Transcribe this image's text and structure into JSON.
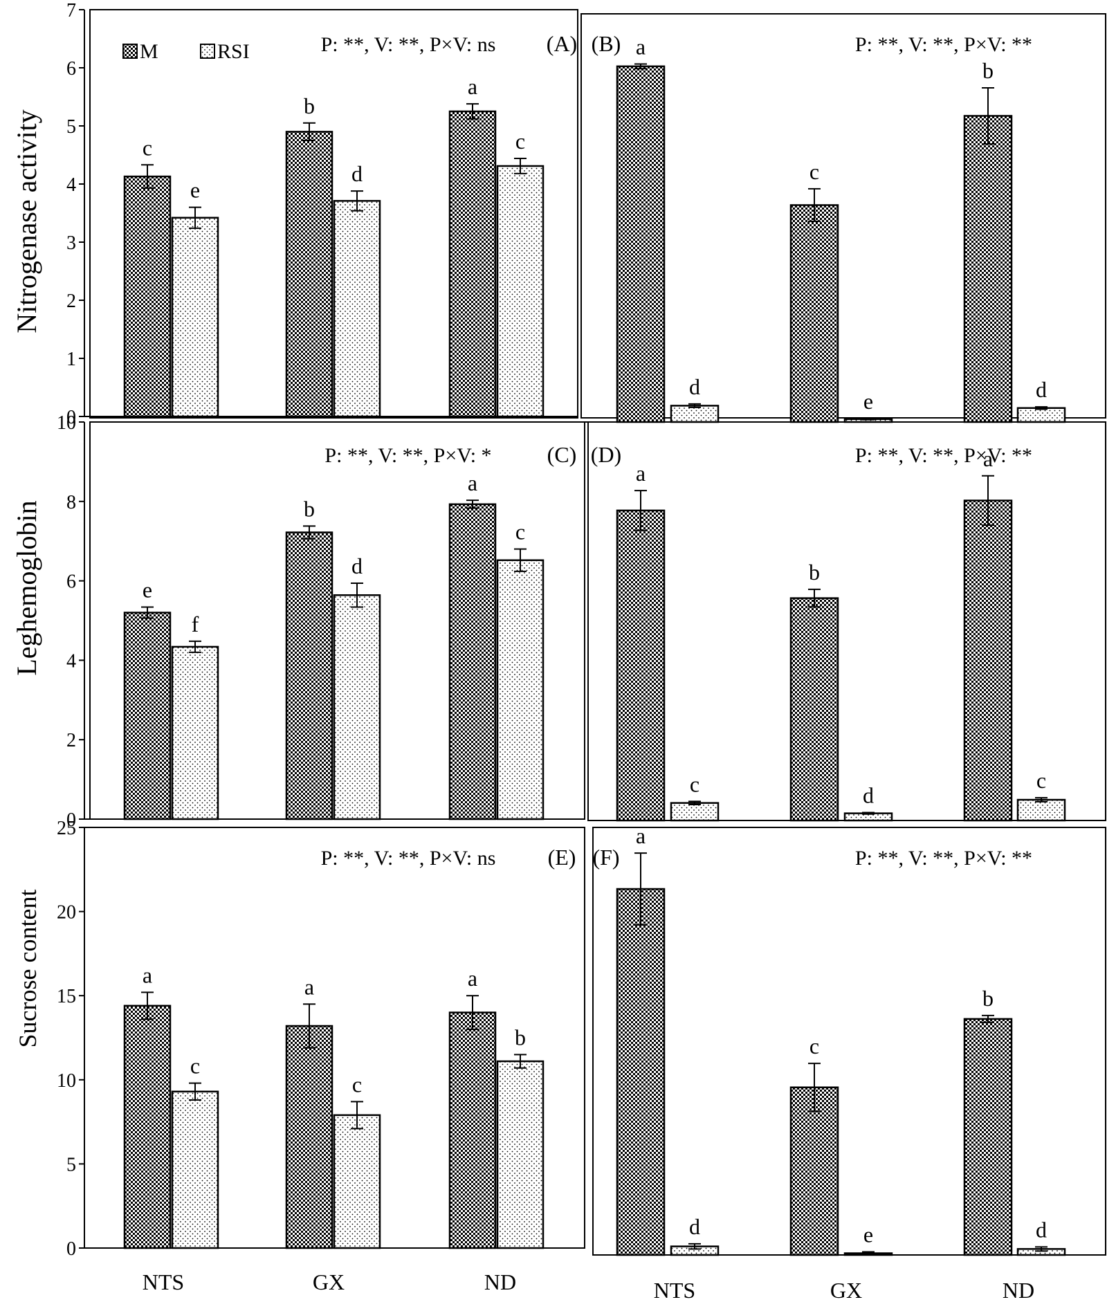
{
  "legend": {
    "items": [
      {
        "label": "M",
        "pattern": "checker"
      },
      {
        "label": "RSI",
        "pattern": "dots"
      }
    ]
  },
  "y_axis_titles": [
    "Nitrogenase  activity",
    "Leghemoglobin",
    "Sucrose content"
  ],
  "x_categories": [
    "NTS",
    "GX",
    "ND"
  ],
  "colors": {
    "bar_outline": "#000000",
    "background": "#ffffff"
  },
  "chart_data": [
    {
      "type": "bar",
      "panel": "(A)",
      "stats": "P: **, V: **, P×V: ns",
      "categories": [
        "NTS",
        "GX",
        "ND"
      ],
      "ylim": [
        0,
        7
      ],
      "ticks": [
        0,
        1,
        2,
        3,
        4,
        5,
        6,
        7
      ],
      "ylabel": "Nitrogenase  activity",
      "series": [
        {
          "name": "M",
          "values": [
            4.13,
            4.9,
            5.25
          ],
          "errors": [
            0.2,
            0.15,
            0.13
          ],
          "letters": [
            "c",
            "b",
            "a"
          ]
        },
        {
          "name": "RSI",
          "values": [
            3.42,
            3.71,
            4.31
          ],
          "errors": [
            0.18,
            0.17,
            0.13
          ],
          "letters": [
            "e",
            "d",
            "c"
          ]
        }
      ]
    },
    {
      "type": "bar",
      "panel": "(B)",
      "stats": "P: **, V: **, P×V: **",
      "categories": [
        "NTS",
        "GX",
        "ND"
      ],
      "ylim": [
        0,
        7
      ],
      "ticks": [],
      "series": [
        {
          "name": "M",
          "values": [
            6.1,
            3.72,
            5.25
          ],
          "errors": [
            0.04,
            0.28,
            0.48
          ],
          "letters": [
            "a",
            "c",
            "b"
          ]
        },
        {
          "name": "RSI",
          "values": [
            0.28,
            0.05,
            0.24
          ],
          "errors": [
            0.03,
            0.01,
            0.02
          ],
          "letters": [
            "d",
            "e",
            "d"
          ]
        }
      ]
    },
    {
      "type": "bar",
      "panel": "(C)",
      "stats": "P: **, V: **, P×V: *",
      "categories": [
        "NTS",
        "GX",
        "ND"
      ],
      "ylim": [
        0,
        10
      ],
      "ticks": [
        0,
        2,
        4,
        6,
        8,
        10
      ],
      "ylabel": "Leghemoglobin",
      "series": [
        {
          "name": "M",
          "values": [
            5.2,
            7.22,
            7.93
          ],
          "errors": [
            0.14,
            0.16,
            0.1
          ],
          "letters": [
            "e",
            "b",
            "a"
          ]
        },
        {
          "name": "RSI",
          "values": [
            4.34,
            5.64,
            6.52
          ],
          "errors": [
            0.14,
            0.3,
            0.28
          ],
          "letters": [
            "f",
            "d",
            "c"
          ]
        }
      ]
    },
    {
      "type": "bar",
      "panel": "(D)",
      "stats": "P: **, V: **, P×V: **",
      "categories": [
        "NTS",
        "GX",
        "ND"
      ],
      "ylim": [
        0,
        10
      ],
      "ticks": [],
      "series": [
        {
          "name": "M",
          "values": [
            7.78,
            5.58,
            8.03
          ],
          "errors": [
            0.5,
            0.22,
            0.62
          ],
          "letters": [
            "a",
            "b",
            "a"
          ]
        },
        {
          "name": "RSI",
          "values": [
            0.44,
            0.18,
            0.52
          ],
          "errors": [
            0.04,
            0.02,
            0.05
          ],
          "letters": [
            "c",
            "d",
            "c"
          ]
        }
      ]
    },
    {
      "type": "bar",
      "panel": "(E)",
      "stats": "P: **, V: **, P×V: ns",
      "categories": [
        "NTS",
        "GX",
        "ND"
      ],
      "ylim": [
        0,
        25
      ],
      "ticks": [
        0,
        5,
        10,
        15,
        20,
        25
      ],
      "ylabel": "Sucrose content",
      "series": [
        {
          "name": "M",
          "values": [
            14.4,
            13.2,
            14.0
          ],
          "errors": [
            0.8,
            1.3,
            1.0
          ],
          "letters": [
            "a",
            "a",
            "a"
          ]
        },
        {
          "name": "RSI",
          "values": [
            9.3,
            7.9,
            11.1
          ],
          "errors": [
            0.5,
            0.8,
            0.4
          ],
          "letters": [
            "c",
            "c",
            "b"
          ]
        }
      ]
    },
    {
      "type": "bar",
      "panel": "(F)",
      "stats": "P: **, V: **, P×V: **",
      "categories": [
        "NTS",
        "GX",
        "ND"
      ],
      "ylim": [
        0,
        25
      ],
      "ticks": [],
      "series": [
        {
          "name": "M",
          "values": [
            21.4,
            9.8,
            13.8
          ],
          "errors": [
            2.1,
            1.4,
            0.2
          ],
          "letters": [
            "a",
            "c",
            "b"
          ]
        },
        {
          "name": "RSI",
          "values": [
            0.5,
            0.1,
            0.35
          ],
          "errors": [
            0.15,
            0.08,
            0.12
          ],
          "letters": [
            "d",
            "e",
            "d"
          ]
        }
      ]
    }
  ]
}
